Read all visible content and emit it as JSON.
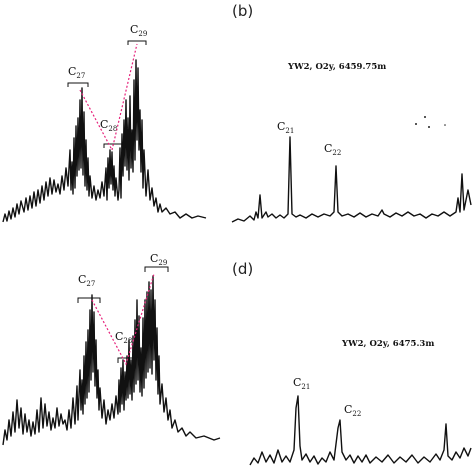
{
  "figure": {
    "panels": [
      {
        "id": "a",
        "letter": "",
        "sample": "",
        "peak_labels": [
          {
            "base": "C",
            "sub": "27"
          },
          {
            "base": "C",
            "sub": "28"
          },
          {
            "base": "C",
            "sub": "29"
          }
        ]
      },
      {
        "id": "b",
        "letter": "(b)",
        "sample": "YW2, O2y, 6459.75m",
        "peak_labels": [
          {
            "base": "C",
            "sub": "21"
          },
          {
            "base": "C",
            "sub": "22"
          }
        ]
      },
      {
        "id": "c",
        "letter": "",
        "sample": "",
        "peak_labels": [
          {
            "base": "C",
            "sub": "27"
          },
          {
            "base": "C",
            "sub": "28"
          },
          {
            "base": "C",
            "sub": "29"
          }
        ]
      },
      {
        "id": "d",
        "letter": "(d)",
        "sample": "YW2, O2y, 6475.3m",
        "peak_labels": [
          {
            "base": "C",
            "sub": "21"
          },
          {
            "base": "C",
            "sub": "22"
          }
        ]
      }
    ]
  },
  "chart_data": [
    {
      "type": "line",
      "panel": "a",
      "title": "",
      "xlabel": "",
      "ylabel": "",
      "peak_labels": [
        "C27",
        "C28",
        "C29"
      ],
      "axes_shown": false,
      "linked_peaks": [
        "C27",
        "C28",
        "C29"
      ]
    },
    {
      "type": "line",
      "panel": "b",
      "title": "YW2, O2y, 6459.75m",
      "xlabel": "",
      "ylabel": "",
      "peak_labels": [
        "C21",
        "C22"
      ],
      "axes_shown": false
    },
    {
      "type": "line",
      "panel": "c",
      "title": "",
      "xlabel": "",
      "ylabel": "",
      "peak_labels": [
        "C27",
        "C28",
        "C29"
      ],
      "axes_shown": false,
      "linked_peaks": [
        "C27",
        "C28",
        "C29"
      ]
    },
    {
      "type": "line",
      "panel": "d",
      "title": "YW2, O2y, 6475.3m",
      "xlabel": "",
      "ylabel": "",
      "peak_labels": [
        "C21",
        "C22"
      ],
      "axes_shown": false
    }
  ],
  "colors": {
    "trace": "#111111",
    "link": "#e6207a"
  }
}
